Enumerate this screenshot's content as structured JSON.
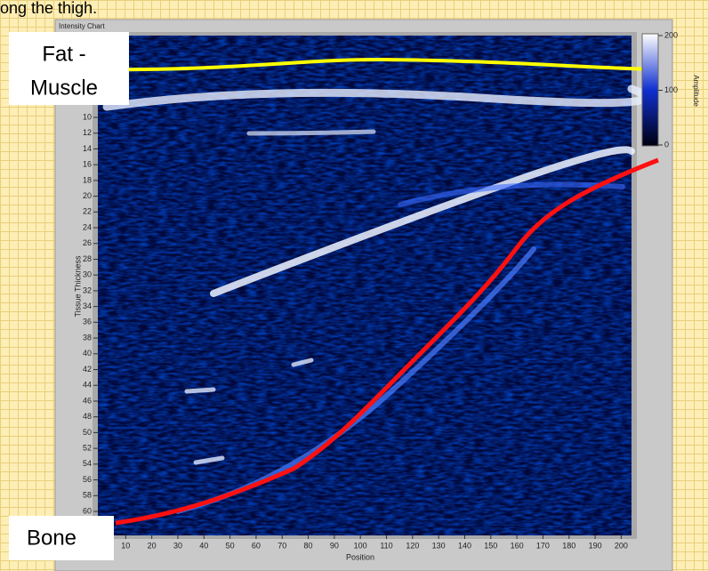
{
  "header": {
    "text": "ong the thigh."
  },
  "panel": {
    "title": "Intensity Chart",
    "x_axis": {
      "label": "Position",
      "ticks": [
        10,
        20,
        30,
        40,
        50,
        60,
        70,
        80,
        90,
        100,
        110,
        120,
        130,
        140,
        150,
        160,
        170,
        180,
        190,
        200
      ]
    },
    "y_axis": {
      "label": "Tissue Thickness",
      "ticks": [
        10,
        12,
        14,
        16,
        18,
        20,
        22,
        24,
        26,
        28,
        30,
        32,
        34,
        36,
        38,
        40,
        42,
        44,
        46,
        48,
        50,
        52,
        54,
        56,
        58,
        60
      ]
    },
    "color_scale": {
      "label": "Amplitude",
      "ticks": [
        0,
        100,
        200
      ]
    }
  },
  "annotations": {
    "fat_muscle": [
      "Fat -",
      "Muscle"
    ],
    "bone": "Bone"
  }
}
